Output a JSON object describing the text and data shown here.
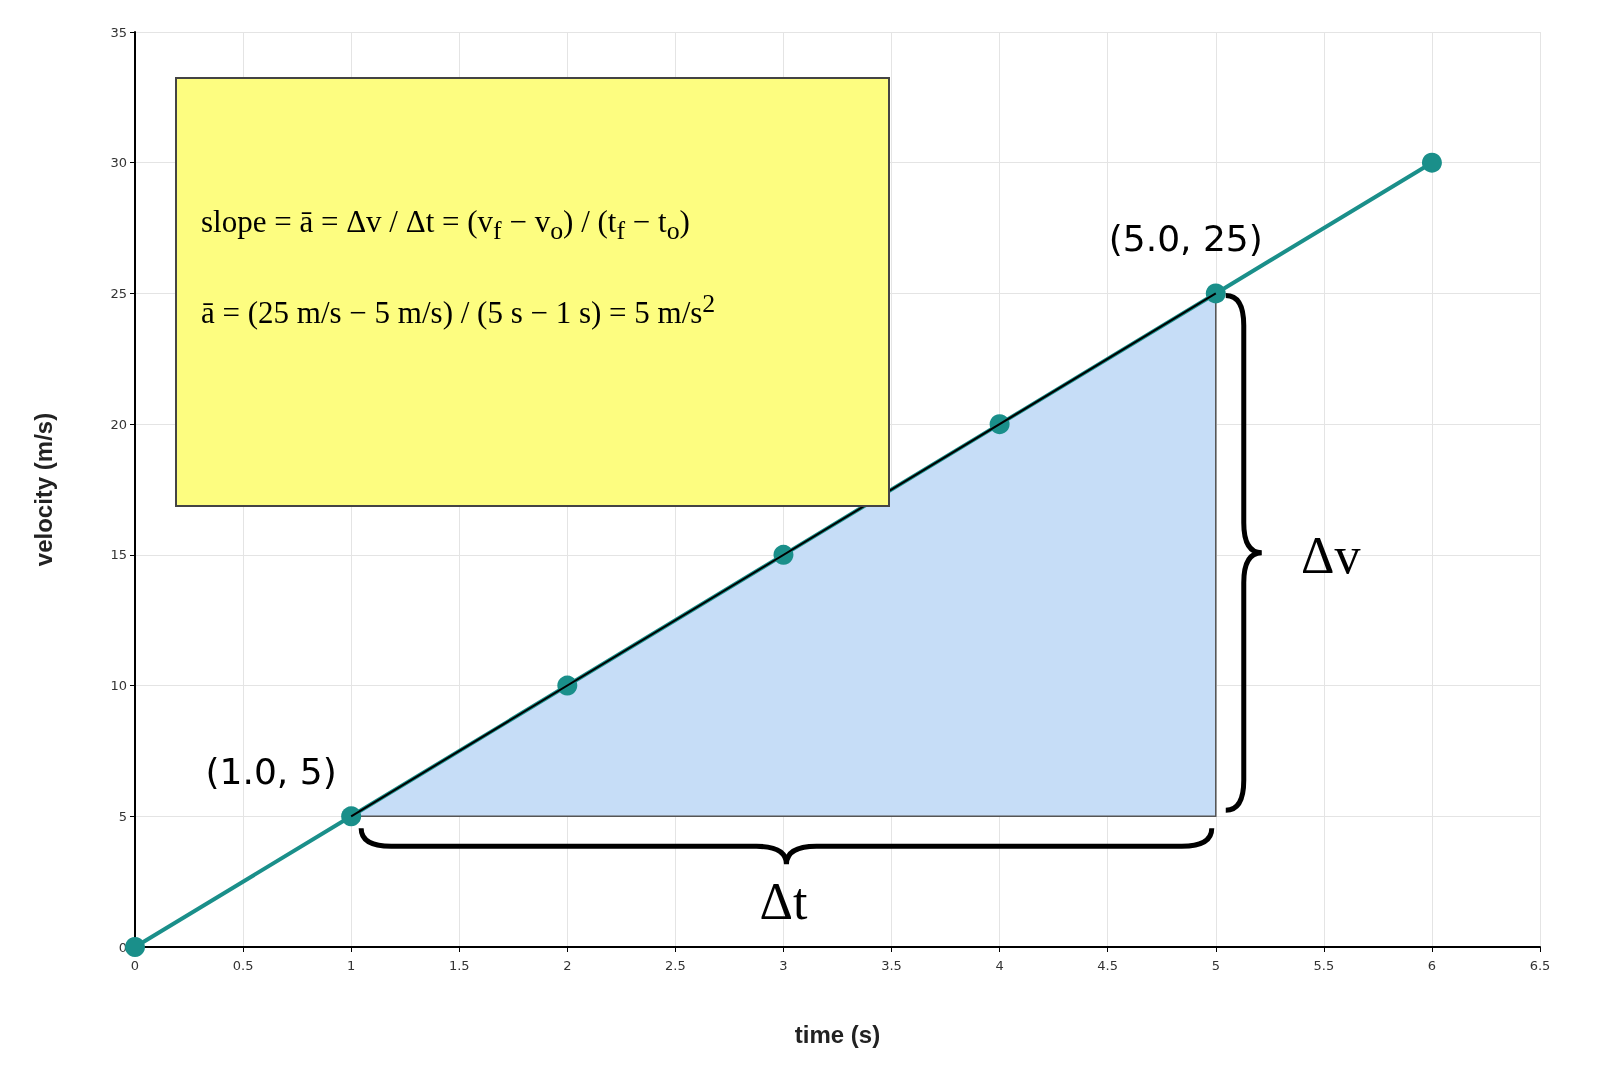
{
  "chart_data": {
    "type": "line",
    "xlabel": "time (s)",
    "ylabel": "velocity (m/s)",
    "x": [
      0,
      1,
      2,
      3,
      4,
      5,
      6
    ],
    "series": [
      {
        "color": "#1a8f8a",
        "values": [
          0,
          5,
          10,
          15,
          20,
          25,
          30
        ]
      },
      {
        "type": "line",
        "color": "#000000",
        "x": [
          1,
          5
        ],
        "values": [
          5,
          25
        ],
        "lower": [
          5,
          5
        ],
        "upper": [
          5,
          25
        ],
        "marker": "none"
      }
    ],
    "xlim": [
      0,
      6.5
    ],
    "xticks": [
      0,
      0.5,
      1,
      1.5,
      2,
      2.5,
      3,
      3.5,
      4,
      4.5,
      5,
      5.5,
      6,
      6.5
    ],
    "ylim": [
      0,
      35
    ],
    "yticks": [
      0,
      5,
      10,
      15,
      20,
      25,
      30,
      35
    ],
    "grid": true,
    "marker": "circle",
    "line_style": "solid",
    "annotations": [
      "slope = ā = Δv / Δt = (v$_{f}$ − v$_{o}$) / (t$_{f}$ − t$_{o}$)",
      "ā = (25 m/s − 5 m/s) / (5 s − 1 s) = 5 m/s$^{2}$",
      "Δt",
      "Δv",
      {
        "text": "(1.0, 5)",
        "x": 1,
        "y": 5
      },
      {
        "text": "(5.0, 25)",
        "x": 5,
        "y": 25
      }
    ]
  }
}
